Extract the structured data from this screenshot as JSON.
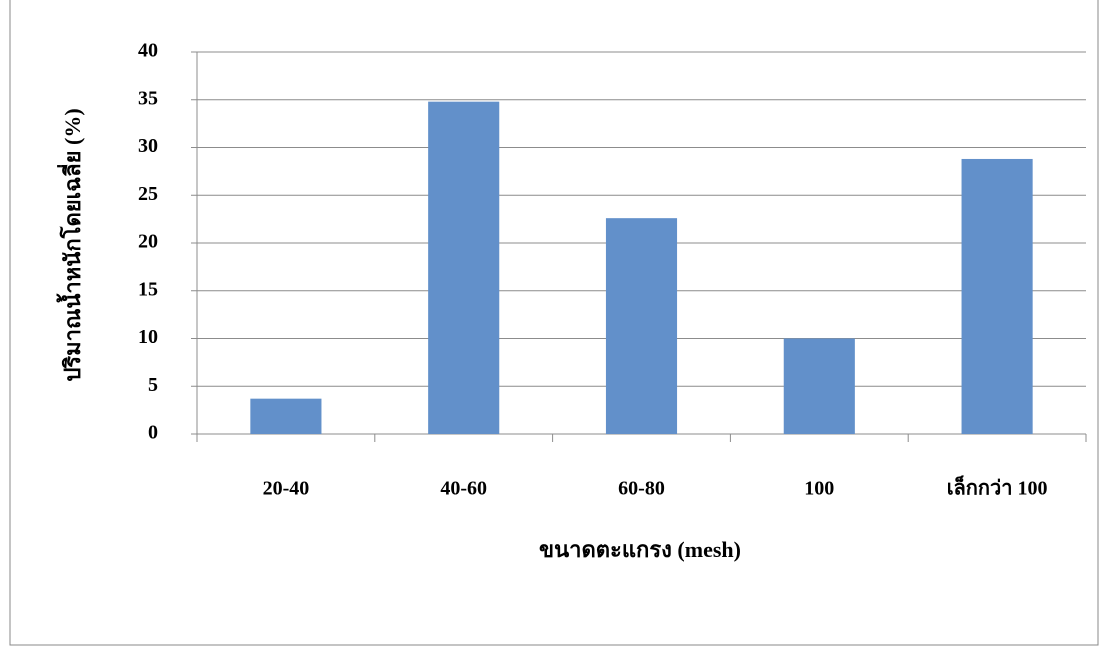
{
  "chart_data": {
    "type": "bar",
    "y_label": "ปริมาณน้ำหนักโดยเฉลี่ย (%)",
    "x_label": "ขนาดตะแกรง (mesh)",
    "categories": [
      "20-40",
      "40-60",
      "60-80",
      "100",
      "เล็กกว่า 100"
    ],
    "values": [
      3.7,
      34.8,
      22.6,
      10.0,
      28.8
    ],
    "color": "#6290ca",
    "ylim": [
      0,
      40
    ],
    "yticks": [
      0,
      5,
      10,
      15,
      20,
      25,
      30,
      35,
      40
    ],
    "grid": true
  }
}
